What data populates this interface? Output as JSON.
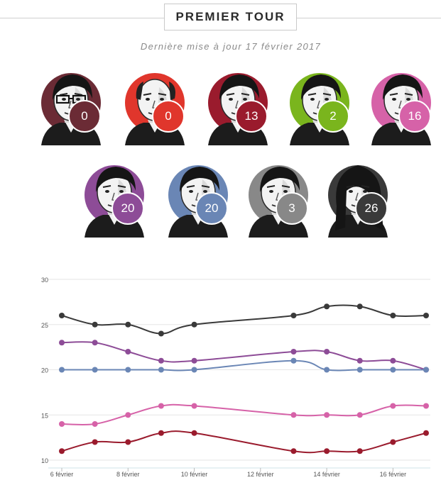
{
  "header": {
    "title": "PREMIER TOUR",
    "updated": "Dernière mise à jour 17 février 2017"
  },
  "candidates": [
    {
      "score": "0",
      "color": "#6b2b35",
      "glasses": true
    },
    {
      "score": "0",
      "color": "#e0362c",
      "bald": true
    },
    {
      "score": "13",
      "color": "#9a1b2d"
    },
    {
      "score": "2",
      "color": "#7ab51d"
    },
    {
      "score": "16",
      "color": "#d662a8"
    },
    {
      "score": "20",
      "color": "#8d4c97"
    },
    {
      "score": "20",
      "color": "#6a86b5"
    },
    {
      "score": "3",
      "color": "#888888"
    },
    {
      "score": "26",
      "color": "#3a3a3a",
      "woman": true
    }
  ],
  "chart_data": {
    "type": "line",
    "x": [
      "6 février",
      "7 février",
      "8 février",
      "9 février",
      "10 février",
      "13 février",
      "14 février",
      "15 février",
      "16 février",
      "17 février"
    ],
    "x_day": [
      6,
      7,
      8,
      9,
      10,
      13,
      14,
      15,
      16,
      17
    ],
    "xtick_days": [
      6,
      8,
      10,
      12,
      14,
      16
    ],
    "xtick_labels": [
      "6 février",
      "8 février",
      "10 février",
      "12 février",
      "14 février",
      "16 février"
    ],
    "ylim": [
      10,
      30
    ],
    "yticks": [
      10,
      15,
      20,
      25,
      30
    ],
    "grid": true,
    "series": [
      {
        "color": "#3a3a3a",
        "values": [
          26,
          25,
          25,
          24,
          25,
          26,
          27,
          27,
          26,
          26
        ]
      },
      {
        "color": "#8d4c97",
        "values": [
          23,
          23,
          22,
          21,
          21,
          22,
          22,
          21,
          21,
          20
        ]
      },
      {
        "color": "#6a86b5",
        "values": [
          20,
          20,
          20,
          20,
          20,
          21,
          20,
          20,
          20,
          20
        ]
      },
      {
        "color": "#d662a8",
        "values": [
          14,
          14,
          15,
          16,
          16,
          15,
          15,
          15,
          16,
          16
        ]
      },
      {
        "color": "#9a1b2d",
        "values": [
          11,
          12,
          12,
          13,
          13,
          11,
          11,
          11,
          12,
          13
        ]
      }
    ]
  }
}
